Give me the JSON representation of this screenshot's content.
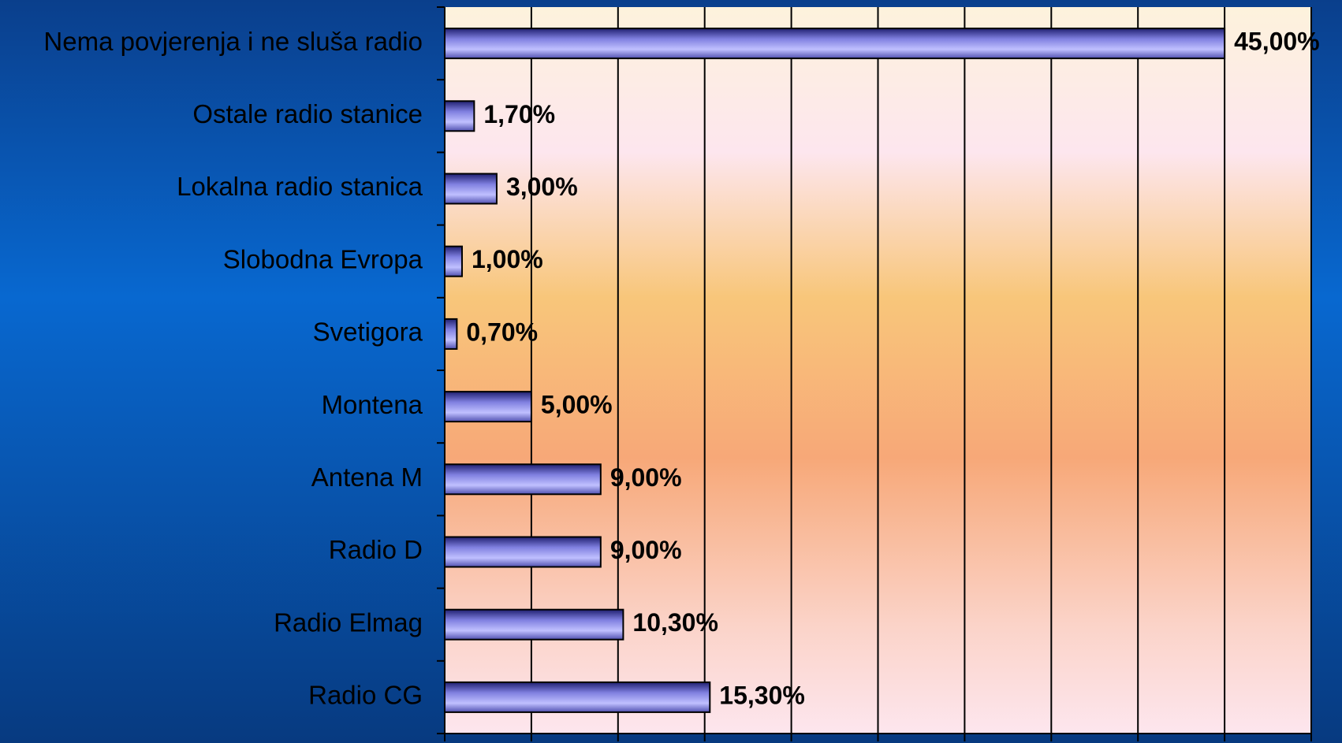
{
  "chart_data": {
    "type": "bar",
    "orientation": "horizontal",
    "categories": [
      "Nema povjerenja i ne sluša radio",
      "Ostale radio stanice",
      "Lokalna radio stanica",
      "Slobodna Evropa",
      "Svetigora",
      "Montena",
      "Antena M",
      "Radio D",
      "Radio Elmag",
      "Radio CG"
    ],
    "values": [
      45,
      1.7,
      3,
      1,
      0.7,
      5,
      9,
      9,
      10.3,
      15.3
    ],
    "value_labels": [
      "45,00%",
      "1,70%",
      "3,00%",
      "1,00%",
      "0,70%",
      "5,00%",
      "9,00%",
      "9,00%",
      "10,30%",
      "15,30%"
    ],
    "color": "#8080e0",
    "xlim": [
      0,
      50
    ],
    "xticks": [
      0,
      5,
      10,
      15,
      20,
      25,
      30,
      35,
      40,
      45,
      50
    ],
    "grid": true
  }
}
